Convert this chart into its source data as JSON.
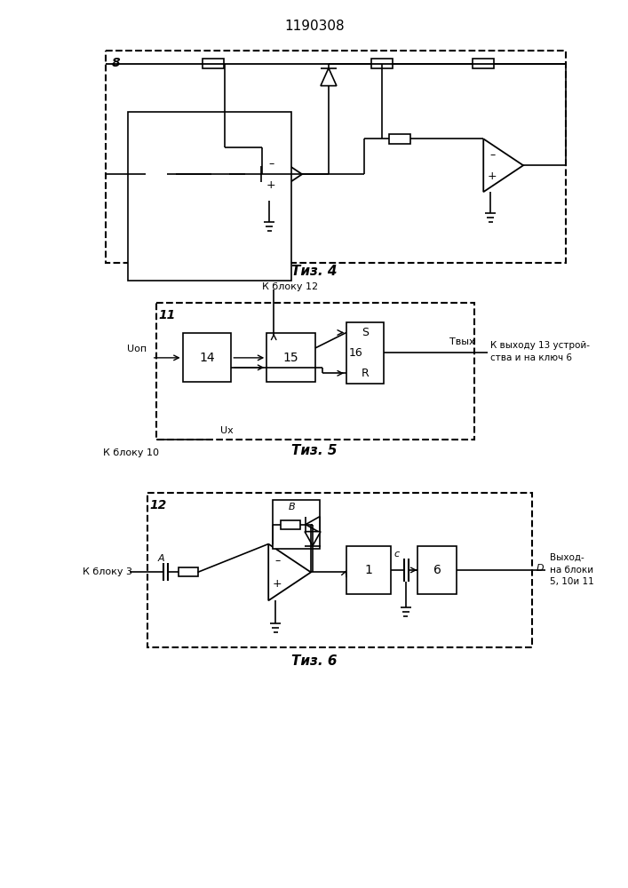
{
  "title": "1190308",
  "fig4_label": "8",
  "fig4_caption": "Τиз. 4",
  "fig5_caption": "Τиз. 5",
  "fig6_caption": "Τиз. 6",
  "fig5_label": "11",
  "fig5_block14": "14",
  "fig5_block15": "15",
  "fig5_block16": "16",
  "fig5_s": "S",
  "fig5_r": "R",
  "fig5_text_uop": "Uоп",
  "fig5_text_ux": "Uх",
  "fig5_text_kbloku10": "К блоку 10",
  "fig5_text_kbloku12": "К блоку 12",
  "fig5_text_tvyx": "Твых",
  "fig5_text_kvyhodu": "К выходу 13 устрой-",
  "fig5_text_stva": "ства и на ключ 6",
  "fig6_label": "12",
  "fig6_text_kbloku3": "К блоку 3",
  "fig6_point_a": "A",
  "fig6_point_b": "B",
  "fig6_point_c": "c",
  "fig6_point_d": "D",
  "fig6_block1": "1",
  "fig6_block6": "6",
  "fig6_text_vyhod": "Выход-",
  "fig6_text_nabloki": "на блоки",
  "fig6_text_51011": "5, 10и 11",
  "bg_color": "#ffffff",
  "line_color": "#000000"
}
